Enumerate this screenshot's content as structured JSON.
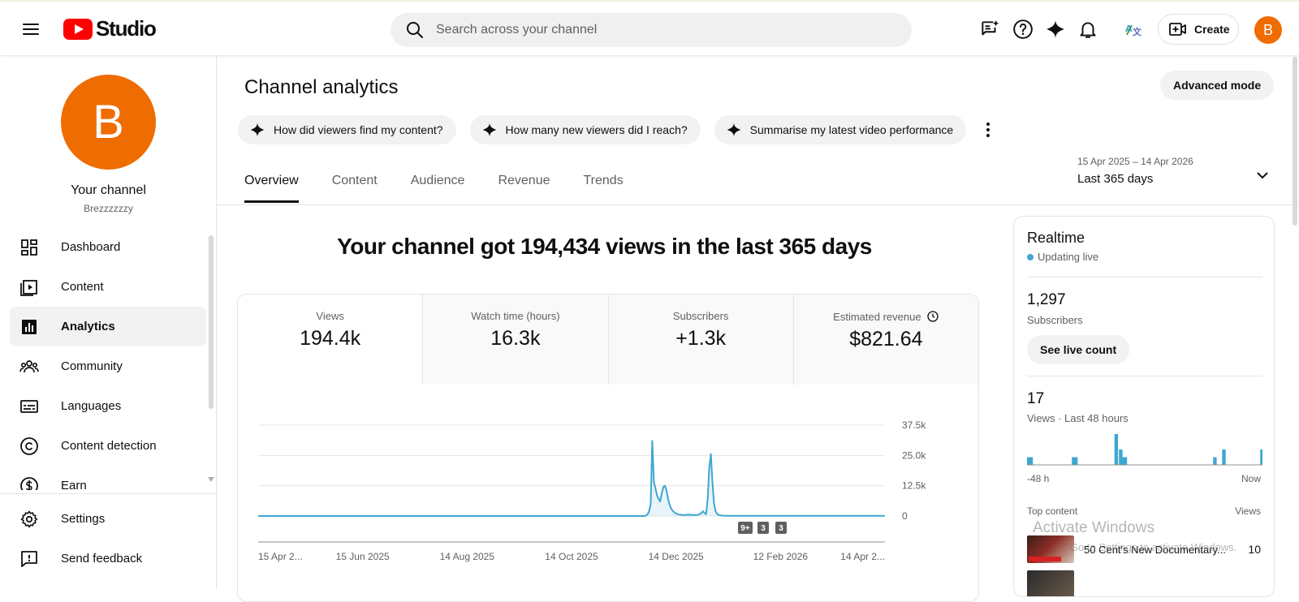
{
  "app": {
    "logo_text": "Studio",
    "brand_color": "#ff0000",
    "accent_color": "#3ea6d1"
  },
  "topbar": {
    "search_placeholder": "Search across your channel",
    "create_label": "Create",
    "avatar_letter": "B",
    "avatar_color": "#ef6c00",
    "icons": [
      "feedback-icon",
      "help-icon",
      "sparkle-icon",
      "bell-icon",
      "translate-icon",
      "create-video-icon"
    ]
  },
  "sidebar": {
    "avatar_letter": "B",
    "channel_title": "Your channel",
    "channel_handle": "Brezzzzzzy",
    "items": [
      {
        "label": "Dashboard",
        "icon": "dashboard-icon"
      },
      {
        "label": "Content",
        "icon": "content-icon"
      },
      {
        "label": "Analytics",
        "icon": "analytics-icon",
        "active": true
      },
      {
        "label": "Community",
        "icon": "community-icon"
      },
      {
        "label": "Languages",
        "icon": "languages-icon"
      },
      {
        "label": "Content detection",
        "icon": "copyright-icon"
      },
      {
        "label": "Earn",
        "icon": "earn-icon"
      }
    ],
    "bottom_items": [
      {
        "label": "Settings",
        "icon": "settings-icon"
      },
      {
        "label": "Send feedback",
        "icon": "send-feedback-icon"
      }
    ]
  },
  "main": {
    "title": "Channel analytics",
    "advanced_mode_label": "Advanced mode",
    "chips": [
      "How did viewers find my content?",
      "How many new viewers did I reach?",
      "Summarise my latest video performance"
    ],
    "tabs": [
      "Overview",
      "Content",
      "Audience",
      "Revenue",
      "Trends"
    ],
    "active_tab": "Overview",
    "date_range": {
      "range": "15 Apr 2025 – 14 Apr 2026",
      "label": "Last 365 days"
    },
    "headline": "Your channel got 194,434 views in the last 365 days",
    "metrics": [
      {
        "label": "Views",
        "value": "194.4k"
      },
      {
        "label": "Watch time (hours)",
        "value": "16.3k"
      },
      {
        "label": "Subscribers",
        "value": "+1.3k"
      },
      {
        "label": "Estimated revenue",
        "value": "$821.64",
        "icon": "clock-icon"
      }
    ],
    "badges": [
      "9+",
      "3",
      "3"
    ]
  },
  "chart_data": {
    "type": "line",
    "title": "",
    "xlabel": "",
    "ylabel": "",
    "x_tick_labels": [
      "15 Apr 2...",
      "15 Jun 2025",
      "14 Aug 2025",
      "14 Oct 2025",
      "14 Dec 2025",
      "12 Feb 2026",
      "14 Apr 2..."
    ],
    "y_ticks": [
      0,
      12500,
      25000,
      37500
    ],
    "y_tick_labels": [
      "0",
      "12.5k",
      "25.0k",
      "37.5k"
    ],
    "ylim": [
      0,
      37500
    ],
    "grid": true,
    "series": [
      {
        "values": [
          0,
          0,
          0,
          0,
          0,
          0,
          0,
          0,
          0,
          0,
          0,
          0,
          0,
          0,
          0,
          0,
          0,
          0,
          0,
          0,
          0,
          0,
          0,
          0,
          0,
          0,
          0,
          0,
          0,
          0,
          0,
          0,
          0,
          0,
          0,
          0,
          0,
          0,
          0,
          0,
          0,
          0,
          0,
          0,
          0,
          0,
          0,
          0,
          0,
          0,
          0,
          0,
          0,
          0,
          0,
          0,
          0,
          0,
          0,
          0,
          0,
          0,
          0,
          0,
          0,
          0,
          0,
          0,
          0,
          0,
          0,
          0,
          0,
          0,
          0,
          0,
          0,
          0,
          0,
          0,
          0,
          0,
          0,
          0,
          0,
          0,
          0,
          0,
          0,
          0,
          0,
          0,
          0,
          0,
          0,
          0,
          0,
          0,
          0,
          0,
          0,
          0,
          0,
          0,
          0,
          0,
          0,
          0,
          0,
          0,
          0,
          0,
          0,
          0,
          0,
          0,
          0,
          0,
          0,
          0,
          0,
          0,
          0,
          0,
          0,
          0,
          0,
          0,
          0,
          0,
          0,
          0,
          0,
          0,
          0,
          0,
          0,
          0,
          0,
          0,
          0,
          0,
          0,
          0,
          0,
          0,
          0,
          0,
          0,
          0,
          0,
          0,
          0,
          0,
          0,
          0,
          0,
          0,
          0,
          0,
          0,
          0,
          0,
          0,
          0,
          0,
          0,
          0,
          0,
          0,
          0,
          0,
          0,
          0,
          0,
          0,
          0,
          0,
          0,
          0,
          0,
          0,
          0,
          0,
          0,
          0,
          0,
          0,
          0,
          0,
          0,
          0,
          0,
          0,
          0,
          0,
          0,
          0,
          0,
          0,
          0,
          0,
          0,
          0,
          0,
          0,
          0,
          0,
          0,
          0,
          0,
          0,
          0,
          0,
          0,
          0,
          0,
          0,
          0,
          0,
          0,
          0,
          0,
          0,
          0,
          0,
          0,
          0,
          0,
          0,
          0,
          0,
          0,
          0,
          0,
          0,
          0,
          0,
          0,
          0,
          0,
          0,
          0,
          0,
          0,
          200,
          700,
          2000,
          5000,
          31000,
          14000,
          11500,
          8500,
          7000,
          6000,
          9500,
          12000,
          12500,
          10500,
          7000,
          4500,
          3000,
          2000,
          1500,
          1000,
          800,
          600,
          500,
          400,
          400,
          400,
          500,
          600,
          500,
          400,
          400,
          400,
          400,
          500,
          800,
          1200,
          2000,
          1200,
          800,
          7000,
          20000,
          25500,
          14000,
          5000,
          2000,
          800,
          500,
          300,
          200,
          150,
          100,
          100,
          100,
          100,
          100,
          100,
          100,
          100,
          100,
          100,
          100,
          100,
          100,
          100,
          100,
          100,
          100,
          100,
          100,
          100,
          100,
          100,
          100,
          100,
          100,
          100,
          100,
          100,
          100,
          100,
          100,
          100,
          100,
          100,
          100,
          100,
          100,
          100,
          100,
          100,
          100,
          100,
          100,
          100,
          100,
          100,
          100,
          100,
          100,
          100,
          100,
          100,
          100,
          100,
          100,
          100,
          100,
          100,
          100,
          100,
          100,
          100,
          100,
          100,
          100,
          100,
          100,
          100,
          100,
          100,
          100,
          100,
          100,
          100,
          100,
          100,
          100,
          100,
          100,
          100,
          100,
          100,
          100,
          100,
          100,
          100,
          100,
          100,
          100,
          100,
          100,
          100,
          100,
          100,
          100,
          100,
          100,
          100,
          100,
          100,
          100,
          100
        ]
      }
    ]
  },
  "realtime": {
    "title": "Realtime",
    "status": "Updating live",
    "subscribers_value": "1,297",
    "subscribers_label": "Subscribers",
    "see_live_label": "See live count",
    "views_value": "17",
    "views_label": "Views · Last 48 hours",
    "axis_start": "-48 h",
    "axis_end": "Now",
    "top_content_label": "Top content",
    "views_col_label": "Views",
    "bars": [
      1,
      1,
      0,
      0,
      0,
      0,
      0,
      0,
      0,
      0,
      0,
      0,
      0,
      0,
      0,
      0,
      0,
      0,
      0,
      0,
      1,
      1,
      0,
      0,
      0,
      0,
      0,
      0,
      0,
      0,
      0,
      0,
      0,
      0,
      0,
      0,
      0,
      0,
      0,
      4,
      0,
      2,
      1,
      1,
      0,
      0,
      0,
      0,
      0,
      0,
      0,
      0,
      0,
      0,
      0,
      0,
      0,
      0,
      0,
      0,
      0,
      0,
      0,
      0,
      0,
      0,
      0,
      0,
      0,
      0,
      0,
      0,
      0,
      0,
      0,
      0,
      0,
      0,
      0,
      0,
      0,
      0,
      0,
      1,
      0,
      0,
      0,
      2,
      0,
      0,
      0,
      0,
      0,
      0,
      0,
      0,
      0,
      0,
      0,
      0,
      0,
      0,
      0,
      0,
      2
    ],
    "top_item": {
      "title": "50 Cent's New Documentary...",
      "views": "10"
    }
  },
  "watermark": {
    "line1": "Activate Windows",
    "line2": "Go to Settings to activate Windows."
  }
}
